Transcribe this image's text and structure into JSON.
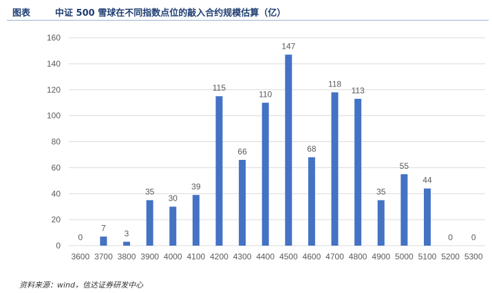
{
  "header": {
    "label": "图表",
    "title": "中证 500 雪球在不同指数点位的敲入合约规模估算（亿）"
  },
  "source": "资料来源：wind，信达证券研发中心",
  "colors": {
    "bar": "#4472c4",
    "grid": "#d9d9d9",
    "text": "#595959",
    "title": "#1f3e72"
  },
  "chart_data": {
    "type": "bar",
    "title": "中证 500 雪球在不同指数点位的敲入合约规模估算（亿）",
    "xlabel": "",
    "ylabel": "",
    "categories": [
      "3600",
      "3700",
      "3800",
      "3900",
      "4000",
      "4100",
      "4200",
      "4300",
      "4400",
      "4500",
      "4600",
      "4700",
      "4800",
      "4900",
      "5000",
      "5100",
      "5200",
      "5300"
    ],
    "values": [
      0,
      7,
      3,
      35,
      30,
      39,
      115,
      66,
      110,
      147,
      68,
      118,
      113,
      35,
      55,
      44,
      0,
      0
    ],
    "ylim": [
      0,
      160
    ],
    "yticks": [
      0,
      20,
      40,
      60,
      80,
      100,
      120,
      140,
      160
    ],
    "grid": true,
    "legend": "none",
    "data_labels": true
  }
}
